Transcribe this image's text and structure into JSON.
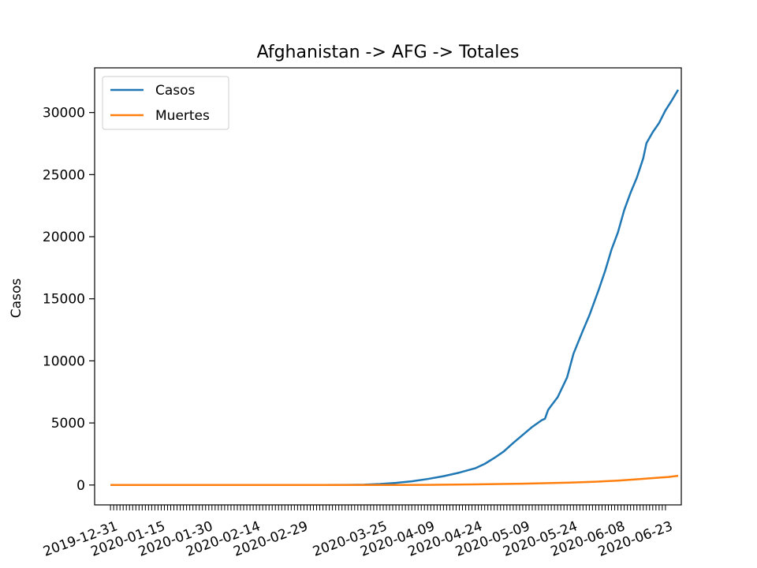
{
  "chart_data": {
    "type": "line",
    "title": "Afghanistan -> AFG -> Totales",
    "xlabel": "",
    "ylabel": "Casos",
    "x_ticks": [
      "2019-12-31",
      "2020-01-15",
      "2020-01-30",
      "2020-02-14",
      "2020-02-29",
      "2020-03-25",
      "2020-04-09",
      "2020-04-24",
      "2020-05-09",
      "2020-05-24",
      "2020-06-08",
      "2020-06-23"
    ],
    "y_ticks": [
      0,
      5000,
      10000,
      15000,
      20000,
      25000,
      30000
    ],
    "y_tick_labels": [
      "0",
      "5000",
      "10000",
      "15000",
      "20000",
      "25000",
      "30000"
    ],
    "ylim": [
      -1600,
      33600
    ],
    "xlim": [
      "2019-12-26",
      "2020-06-28"
    ],
    "grid": false,
    "legend": "upper-left",
    "series": [
      {
        "name": "Casos",
        "color": "#1f77b4",
        "points": [
          [
            "2019-12-31",
            0
          ],
          [
            "2020-02-24",
            1
          ],
          [
            "2020-03-07",
            1
          ],
          [
            "2020-03-15",
            16
          ],
          [
            "2020-03-20",
            24
          ],
          [
            "2020-03-25",
            84
          ],
          [
            "2020-03-30",
            170
          ],
          [
            "2020-04-04",
            299
          ],
          [
            "2020-04-09",
            484
          ],
          [
            "2020-04-14",
            714
          ],
          [
            "2020-04-19",
            996
          ],
          [
            "2020-04-24",
            1351
          ],
          [
            "2020-04-27",
            1703
          ],
          [
            "2020-04-30",
            2171
          ],
          [
            "2020-05-03",
            2704
          ],
          [
            "2020-05-06",
            3392
          ],
          [
            "2020-05-09",
            4033
          ],
          [
            "2020-05-12",
            4687
          ],
          [
            "2020-05-15",
            5226
          ],
          [
            "2020-05-16",
            5339
          ],
          [
            "2020-05-17",
            6053
          ],
          [
            "2020-05-18",
            6402
          ],
          [
            "2020-05-20",
            7072
          ],
          [
            "2020-05-23",
            8676
          ],
          [
            "2020-05-25",
            10582
          ],
          [
            "2020-05-28",
            12456
          ],
          [
            "2020-05-30",
            13659
          ],
          [
            "2020-06-02",
            15750
          ],
          [
            "2020-06-04",
            17267
          ],
          [
            "2020-06-06",
            18969
          ],
          [
            "2020-06-08",
            20342
          ],
          [
            "2020-06-10",
            22142
          ],
          [
            "2020-06-12",
            23546
          ],
          [
            "2020-06-14",
            24766
          ],
          [
            "2020-06-16",
            26310
          ],
          [
            "2020-06-17",
            27532
          ],
          [
            "2020-06-19",
            28424
          ],
          [
            "2020-06-21",
            29157
          ],
          [
            "2020-06-23",
            30175
          ],
          [
            "2020-06-25",
            30967
          ],
          [
            "2020-06-27",
            31836
          ]
        ]
      },
      {
        "name": "Muertes",
        "color": "#ff7f0e",
        "points": [
          [
            "2019-12-31",
            0
          ],
          [
            "2020-03-22",
            1
          ],
          [
            "2020-04-09",
            15
          ],
          [
            "2020-04-24",
            50
          ],
          [
            "2020-05-09",
            106
          ],
          [
            "2020-05-24",
            193
          ],
          [
            "2020-06-01",
            269
          ],
          [
            "2020-06-08",
            357
          ],
          [
            "2020-06-15",
            477
          ],
          [
            "2020-06-20",
            580
          ],
          [
            "2020-06-24",
            650
          ],
          [
            "2020-06-27",
            744
          ]
        ]
      }
    ]
  }
}
